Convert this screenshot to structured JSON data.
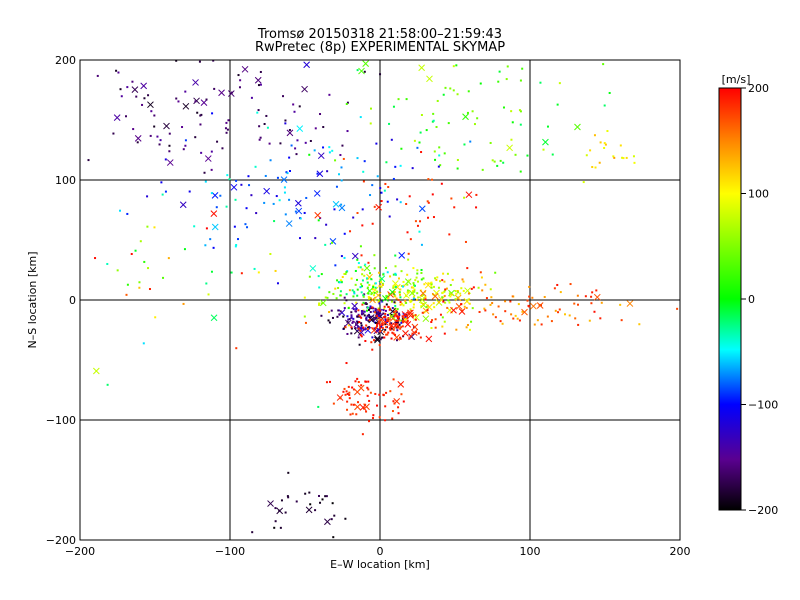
{
  "chart_data": {
    "type": "scatter",
    "title": "Tromsø 20150318 21:58:00–21:59:43",
    "subtitle": "RwPretec (8p) EXPERIMENTAL SKYMAP",
    "xlabel": "E–W location [km]",
    "ylabel": "N–S location [km]",
    "xlim": [
      -200,
      200
    ],
    "ylim": [
      -200,
      200
    ],
    "xticks": [
      -200,
      -100,
      0,
      100,
      200
    ],
    "yticks": [
      -200,
      -100,
      0,
      100,
      200
    ],
    "xtick_labels": [
      "−200",
      "−100",
      "0",
      "100",
      "200"
    ],
    "ytick_labels": [
      "−200",
      "−100",
      "0",
      "100",
      "200"
    ],
    "grid_lines": [
      -100,
      0,
      100
    ],
    "colorbar": {
      "label": "[m/s]",
      "range": [
        -200,
        200
      ],
      "ticks": [
        200,
        100,
        0,
        -100,
        -200
      ],
      "tick_labels": [
        "200",
        "100",
        "0",
        "−100",
        "−200"
      ],
      "colormap": "black-purple-blue-cyan-green-yellow-red"
    },
    "marker_types": [
      "dot",
      "cross"
    ],
    "clusters": [
      {
        "center": [
          -120,
          160
        ],
        "spread": [
          50,
          25
        ],
        "count": 120,
        "velocity": [
          -190,
          -140
        ]
      },
      {
        "center": [
          60,
          155
        ],
        "spread": [
          40,
          30
        ],
        "count": 90,
        "velocity": [
          -20,
          80
        ]
      },
      {
        "center": [
          -50,
          90
        ],
        "spread": [
          45,
          30
        ],
        "count": 130,
        "velocity": [
          -130,
          -30
        ]
      },
      {
        "center": [
          20,
          70
        ],
        "spread": [
          25,
          20
        ],
        "count": 40,
        "velocity": [
          170,
          200
        ]
      },
      {
        "center": [
          20,
          5
        ],
        "spread": [
          25,
          10
        ],
        "count": 220,
        "velocity": [
          40,
          130
        ]
      },
      {
        "center": [
          90,
          -5
        ],
        "spread": [
          45,
          10
        ],
        "count": 110,
        "velocity": [
          120,
          200
        ]
      },
      {
        "center": [
          -5,
          -15
        ],
        "spread": [
          12,
          8
        ],
        "count": 180,
        "velocity": [
          -200,
          -110
        ]
      },
      {
        "center": [
          5,
          -20
        ],
        "spread": [
          12,
          8
        ],
        "count": 130,
        "velocity": [
          170,
          200
        ]
      },
      {
        "center": [
          -10,
          15
        ],
        "spread": [
          20,
          12
        ],
        "count": 80,
        "velocity": [
          -60,
          60
        ]
      },
      {
        "center": [
          -10,
          -80
        ],
        "spread": [
          15,
          12
        ],
        "count": 70,
        "velocity": [
          170,
          200
        ]
      },
      {
        "center": [
          -50,
          -170
        ],
        "spread": [
          20,
          12
        ],
        "count": 30,
        "velocity": [
          -200,
          -170
        ]
      },
      {
        "center": [
          150,
          120
        ],
        "spread": [
          10,
          12
        ],
        "count": 20,
        "velocity": [
          80,
          140
        ]
      },
      {
        "center": [
          -140,
          20
        ],
        "spread": [
          50,
          40
        ],
        "count": 40,
        "velocity": [
          -60,
          200
        ]
      }
    ]
  }
}
